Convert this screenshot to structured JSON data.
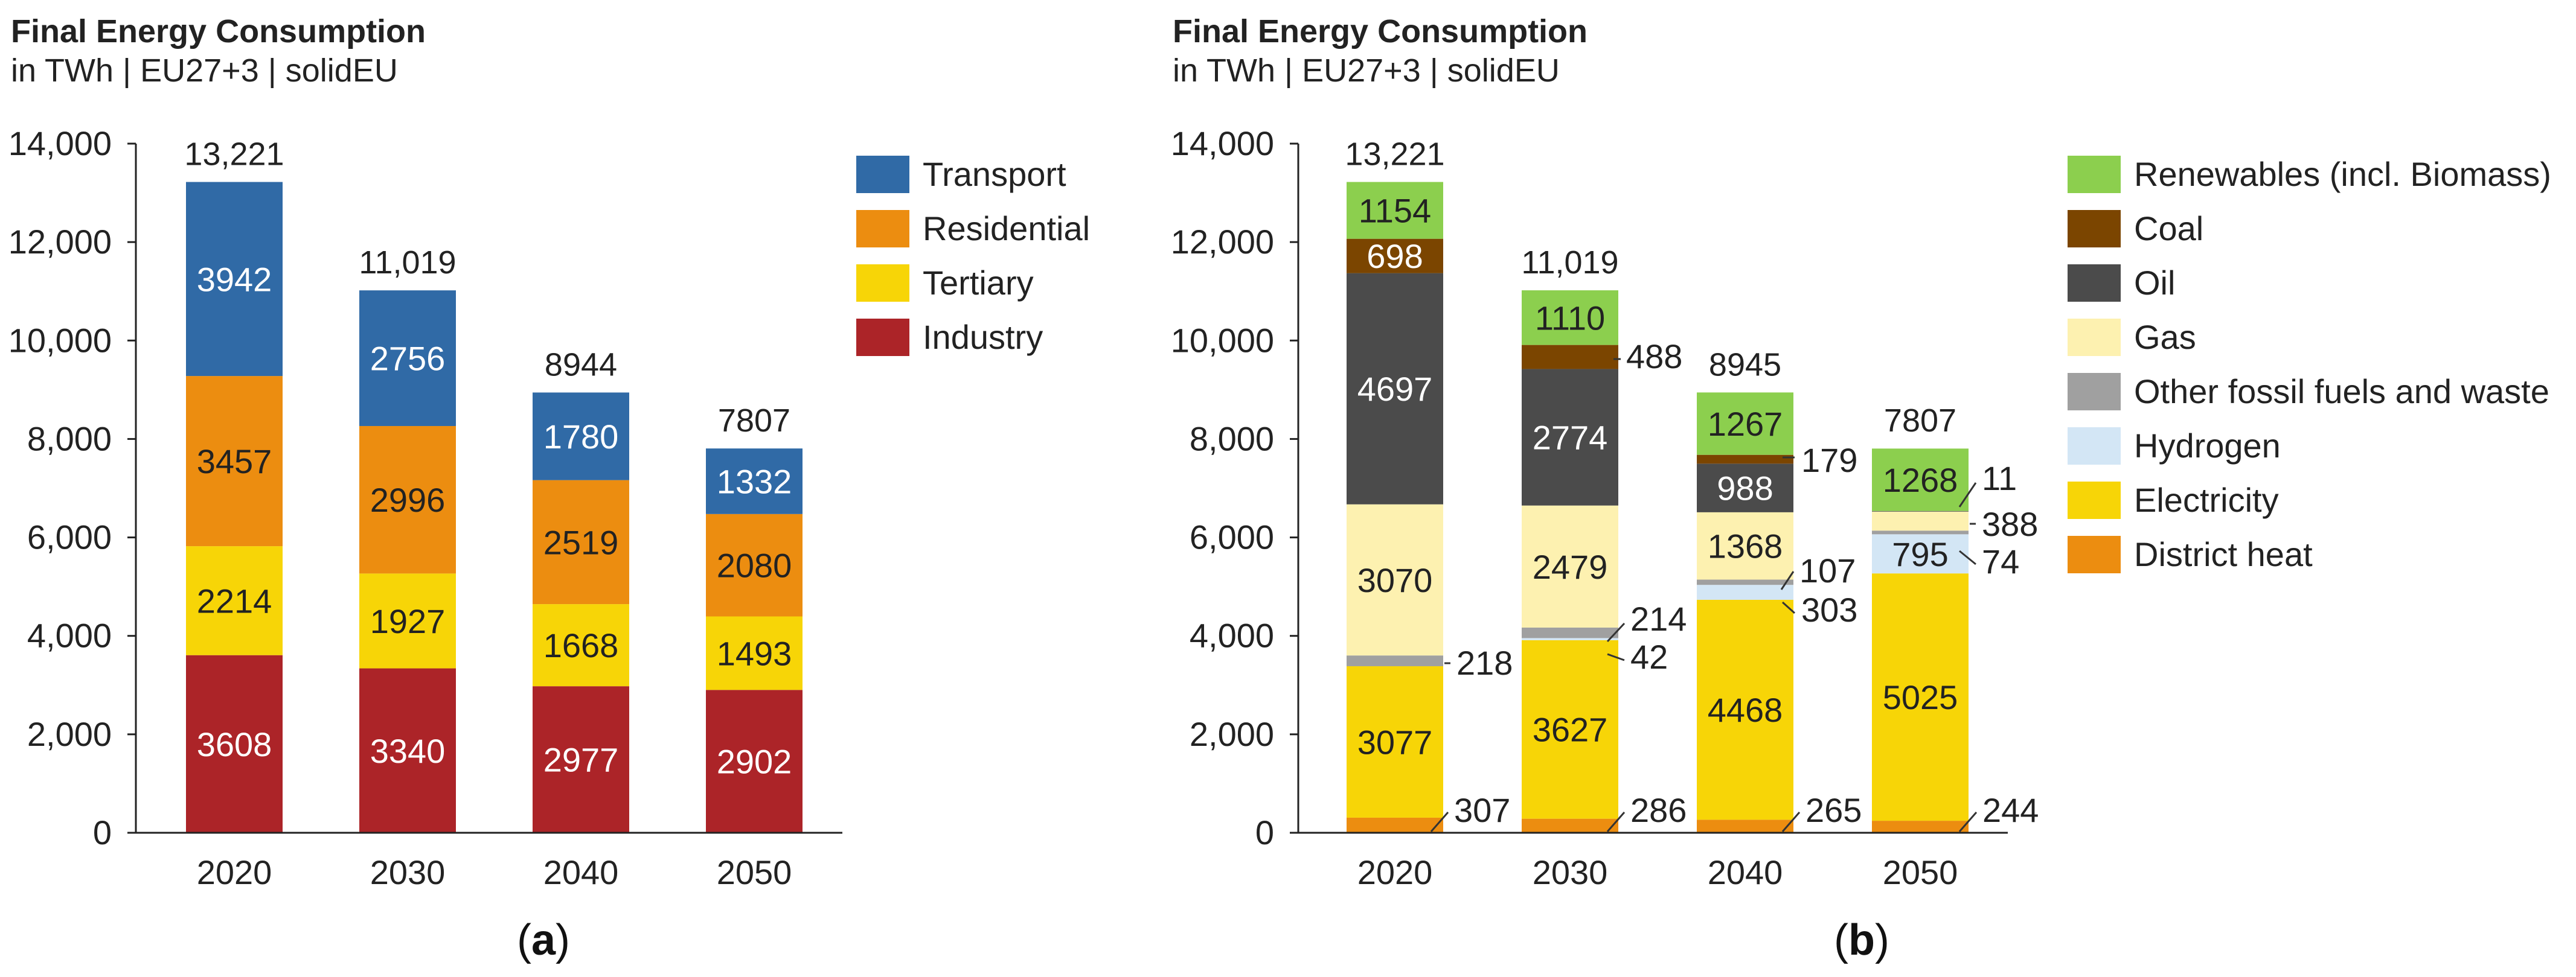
{
  "chart_data": [
    {
      "id": "a",
      "type": "bar",
      "stacked": true,
      "title": "Final Energy Consumption",
      "subtitle": "in TWh | EU27+3 | solidEU",
      "panel_label": "a",
      "categories": [
        "2020",
        "2030",
        "2040",
        "2050"
      ],
      "ylim": [
        0,
        14000
      ],
      "yticks": [
        0,
        2000,
        4000,
        6000,
        8000,
        10000,
        12000,
        14000
      ],
      "ytick_labels": [
        "0",
        "2,000",
        "4,000",
        "6,000",
        "8,000",
        "10,000",
        "12,000",
        "14,000"
      ],
      "totals": [
        13221,
        11019,
        8944,
        7807
      ],
      "total_labels": [
        "13,221",
        "11,019",
        "8944",
        "7807"
      ],
      "legend_position": "right",
      "series": [
        {
          "name": "Industry",
          "color": "#ac2428",
          "label_color": "#ffffff",
          "values": [
            3608,
            3340,
            2977,
            2902
          ]
        },
        {
          "name": "Tertiary",
          "color": "#f7d507",
          "label_color": "#222222",
          "values": [
            2214,
            1927,
            1668,
            1493
          ]
        },
        {
          "name": "Residential",
          "color": "#ec8d10",
          "label_color": "#222222",
          "values": [
            3457,
            2996,
            2519,
            2080
          ]
        },
        {
          "name": "Transport",
          "color": "#306aa6",
          "label_color": "#ffffff",
          "values": [
            3942,
            2756,
            1780,
            1332
          ]
        }
      ],
      "legend_order": [
        "Transport",
        "Residential",
        "Tertiary",
        "Industry"
      ]
    },
    {
      "id": "b",
      "type": "bar",
      "stacked": true,
      "title": "Final Energy Consumption",
      "subtitle": "in TWh | EU27+3 | solidEU",
      "panel_label": "b",
      "categories": [
        "2020",
        "2030",
        "2040",
        "2050"
      ],
      "ylim": [
        0,
        14000
      ],
      "yticks": [
        0,
        2000,
        4000,
        6000,
        8000,
        10000,
        12000,
        14000
      ],
      "ytick_labels": [
        "0",
        "2,000",
        "4,000",
        "6,000",
        "8,000",
        "10,000",
        "12,000",
        "14,000"
      ],
      "totals": [
        13221,
        11019,
        8945,
        7807
      ],
      "total_labels": [
        "13,221",
        "11,019",
        "8945",
        "7807"
      ],
      "legend_position": "right",
      "series": [
        {
          "name": "District heat",
          "color": "#ec8d10",
          "label_color": "#222222",
          "values": [
            307,
            286,
            265,
            244
          ],
          "outside": [
            true,
            true,
            true,
            true
          ]
        },
        {
          "name": "Electricity",
          "color": "#f7d507",
          "label_color": "#222222",
          "values": [
            3077,
            3627,
            4468,
            5025
          ],
          "outside": [
            false,
            false,
            false,
            false
          ]
        },
        {
          "name": "Hydrogen",
          "color": "#d3e6f5",
          "label_color": "#222222",
          "values": [
            0,
            42,
            303,
            795
          ],
          "outside": [
            false,
            true,
            true,
            false
          ],
          "hide_zero": true
        },
        {
          "name": "Other fossil fuels and waste",
          "color": "#a0a0a0",
          "label_color": "#222222",
          "values": [
            218,
            214,
            107,
            74
          ],
          "outside": [
            true,
            true,
            true,
            true
          ]
        },
        {
          "name": "Gas",
          "color": "#fdf1b0",
          "label_color": "#222222",
          "values": [
            3070,
            2479,
            1368,
            388
          ],
          "outside": [
            false,
            false,
            false,
            true
          ]
        },
        {
          "name": "Oil",
          "color": "#4b4b4b",
          "label_color": "#ffffff",
          "values": [
            4697,
            2774,
            988,
            11
          ],
          "outside": [
            false,
            false,
            false,
            true
          ]
        },
        {
          "name": "Coal",
          "color": "#7b4500",
          "label_color": "#ffffff",
          "values": [
            698,
            488,
            179,
            0
          ],
          "outside": [
            false,
            true,
            true,
            false
          ],
          "hide_zero": true
        },
        {
          "name": "Renewables (incl. Biomass)",
          "color": "#8ccf4e",
          "label_color": "#222222",
          "values": [
            1154,
            1110,
            1267,
            1268
          ],
          "outside": [
            false,
            false,
            false,
            false
          ]
        }
      ],
      "legend_order": [
        "Renewables (incl. Biomass)",
        "Coal",
        "Oil",
        "Gas",
        "Other fossil fuels and waste",
        "Hydrogen",
        "Electricity",
        "District heat"
      ]
    }
  ]
}
